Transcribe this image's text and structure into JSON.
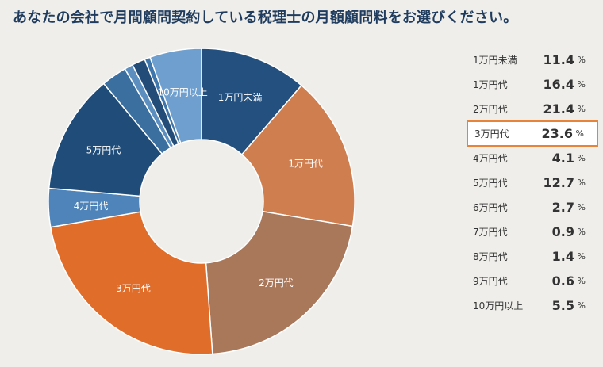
{
  "title": "あなたの会社で月間顧問契約している税理士の月額顧問料をお選びください。",
  "chart_data": {
    "type": "pie",
    "donut": true,
    "unit": "%",
    "highlight": "3万円代",
    "slices": [
      {
        "label": "1万円未満",
        "value": 11.4,
        "color": "#24507f",
        "show_label": true
      },
      {
        "label": "1万円代",
        "value": 16.4,
        "color": "#ce7e4f",
        "show_label": true
      },
      {
        "label": "2万円代",
        "value": 21.4,
        "color": "#a9775a",
        "show_label": true
      },
      {
        "label": "3万円代",
        "value": 23.6,
        "color": "#e06d2a",
        "show_label": true
      },
      {
        "label": "4万円代",
        "value": 4.1,
        "color": "#4e84b9",
        "show_label": true
      },
      {
        "label": "5万円代",
        "value": 12.7,
        "color": "#1f4c79",
        "show_label": true
      },
      {
        "label": "6万円代",
        "value": 2.7,
        "color": "#3a6f9f",
        "show_label": false
      },
      {
        "label": "7万円代",
        "value": 0.9,
        "color": "#5c8fc0",
        "show_label": false
      },
      {
        "label": "8万円代",
        "value": 1.4,
        "color": "#234d78",
        "show_label": false
      },
      {
        "label": "9万円代",
        "value": 0.6,
        "color": "#3f76ab",
        "show_label": false
      },
      {
        "label": "10万円以上",
        "value": 5.5,
        "color": "#6f9fce",
        "show_label": true
      }
    ]
  }
}
